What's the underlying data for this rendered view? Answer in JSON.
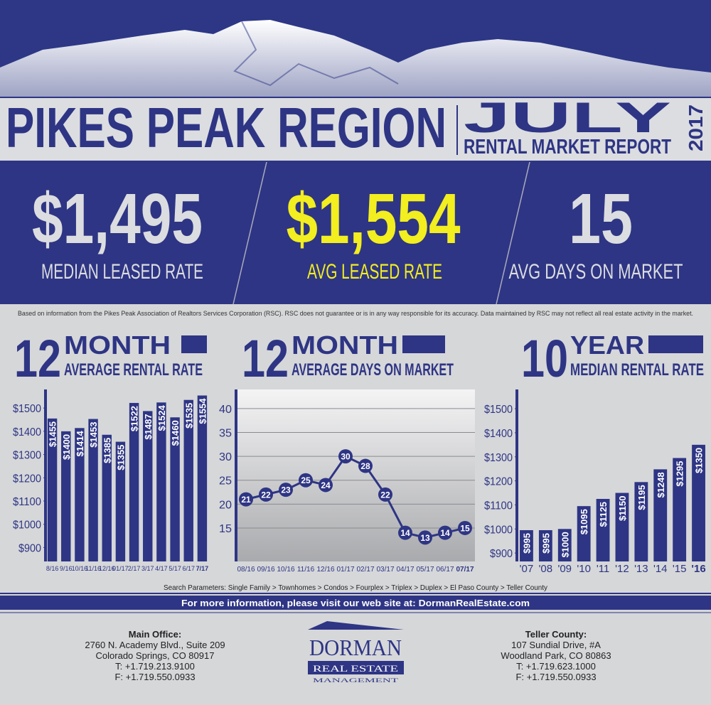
{
  "header": {
    "title": "PIKES PEAK REGION",
    "month": "JULY",
    "subtitle": "RENTAL MARKET REPORT",
    "year": "2017"
  },
  "stats": [
    {
      "value": "$1,495",
      "label": "MEDIAN LEASED RATE"
    },
    {
      "value": "$1,554",
      "label": "AVG LEASED RATE"
    },
    {
      "value": "15",
      "label": "AVG DAYS ON MARKET"
    }
  ],
  "disclaimer": "Based on information from the Pikes Peak Association of Realtors Services Corporation (RSC). RSC does not guarantee or is in any way responsible for its accuracy. Data maintained by RSC may not reflect all real estate activity in the market.",
  "chart_data": [
    {
      "type": "bar",
      "title_number": "12",
      "title_unit": "MONTH",
      "title": "AVERAGE RENTAL RATE",
      "categories": [
        "8/16",
        "9/16",
        "10/16",
        "11/16",
        "12/16",
        "01/17",
        "2/17",
        "3/17",
        "4/17",
        "5/17",
        "6/17",
        "7/17"
      ],
      "values": [
        1455,
        1400,
        1414,
        1453,
        1385,
        1355,
        1522,
        1487,
        1524,
        1460,
        1535,
        1554
      ],
      "value_labels": [
        "$1455",
        "$1400",
        "$1414",
        "$1453",
        "$1385",
        "$1355",
        "$1522",
        "$1487",
        "$1524",
        "$1460",
        "$1535",
        "$1554"
      ],
      "color": "#2e3584",
      "ylim": [
        840,
        1580
      ],
      "yticks": [
        {
          "value": 900,
          "label": "$900"
        },
        {
          "value": 1000,
          "label": "$1000"
        },
        {
          "value": 1100,
          "label": "$1100"
        },
        {
          "value": 1200,
          "label": "$1200"
        },
        {
          "value": 1300,
          "label": "$1300"
        },
        {
          "value": 1400,
          "label": "$1400"
        },
        {
          "value": 1500,
          "label": "$1500"
        }
      ]
    },
    {
      "type": "line",
      "title_number": "12",
      "title_unit": "MONTH",
      "title": "AVERAGE DAYS ON MARKET",
      "categories": [
        "08/16",
        "09/16",
        "10/16",
        "11/16",
        "12/16",
        "01/17",
        "02/17",
        "03/17",
        "04/17",
        "05/17",
        "06/17",
        "07/17"
      ],
      "values": [
        21,
        22,
        23,
        25,
        24,
        30,
        28,
        22,
        14,
        13,
        14,
        15
      ],
      "color": "#2e3584",
      "ylim": [
        8,
        44
      ],
      "yticks": [
        15,
        20,
        25,
        30,
        35,
        40
      ],
      "grid": true
    },
    {
      "type": "bar",
      "title_number": "10",
      "title_unit": "YEAR",
      "title": "MEDIAN RENTAL RATE",
      "categories": [
        "'07",
        "'08",
        "'09",
        "'10",
        "'11",
        "'12",
        "'13",
        "'14",
        "'15",
        "'16"
      ],
      "values": [
        995,
        995,
        1000,
        1095,
        1125,
        1150,
        1195,
        1248,
        1295,
        1350
      ],
      "value_labels": [
        "$995",
        "$995",
        "$1000",
        "$1095",
        "$1125",
        "$1150",
        "$1195",
        "$1248",
        "$1295",
        "$1350"
      ],
      "color": "#2e3584",
      "ylim": [
        865,
        1580
      ],
      "yticks": [
        {
          "value": 900,
          "label": "$900"
        },
        {
          "value": 1000,
          "label": "$1000"
        },
        {
          "value": 1100,
          "label": "$1100"
        },
        {
          "value": 1200,
          "label": "$1200"
        },
        {
          "value": 1300,
          "label": "$1300"
        },
        {
          "value": 1400,
          "label": "$1400"
        },
        {
          "value": 1500,
          "label": "$1500"
        }
      ]
    }
  ],
  "search_parameters": "Search Parameters: Single Family > Townhomes > Condos > Fourplex > Triplex > Duplex > El Paso County > Teller County",
  "more_info": "For more information, please visit our web site at: DormanRealEstate.com",
  "offices": [
    {
      "title": "Main Office:",
      "lines": [
        "2760 N. Academy Blvd., Suite 209",
        "Colorado Springs, CO 80917",
        "T: +1.719.213.9100",
        "F: +1.719.550.0933"
      ]
    },
    {
      "title": "Teller County:",
      "lines": [
        "107 Sundial Drive, #A",
        "Woodland Park, CO 80863",
        "T: +1.719.623.1000",
        "F: +1.719.550.0933"
      ]
    }
  ],
  "logo": {
    "name": "DORMAN",
    "line2": "REAL ESTATE",
    "line3": "MANAGEMENT"
  }
}
